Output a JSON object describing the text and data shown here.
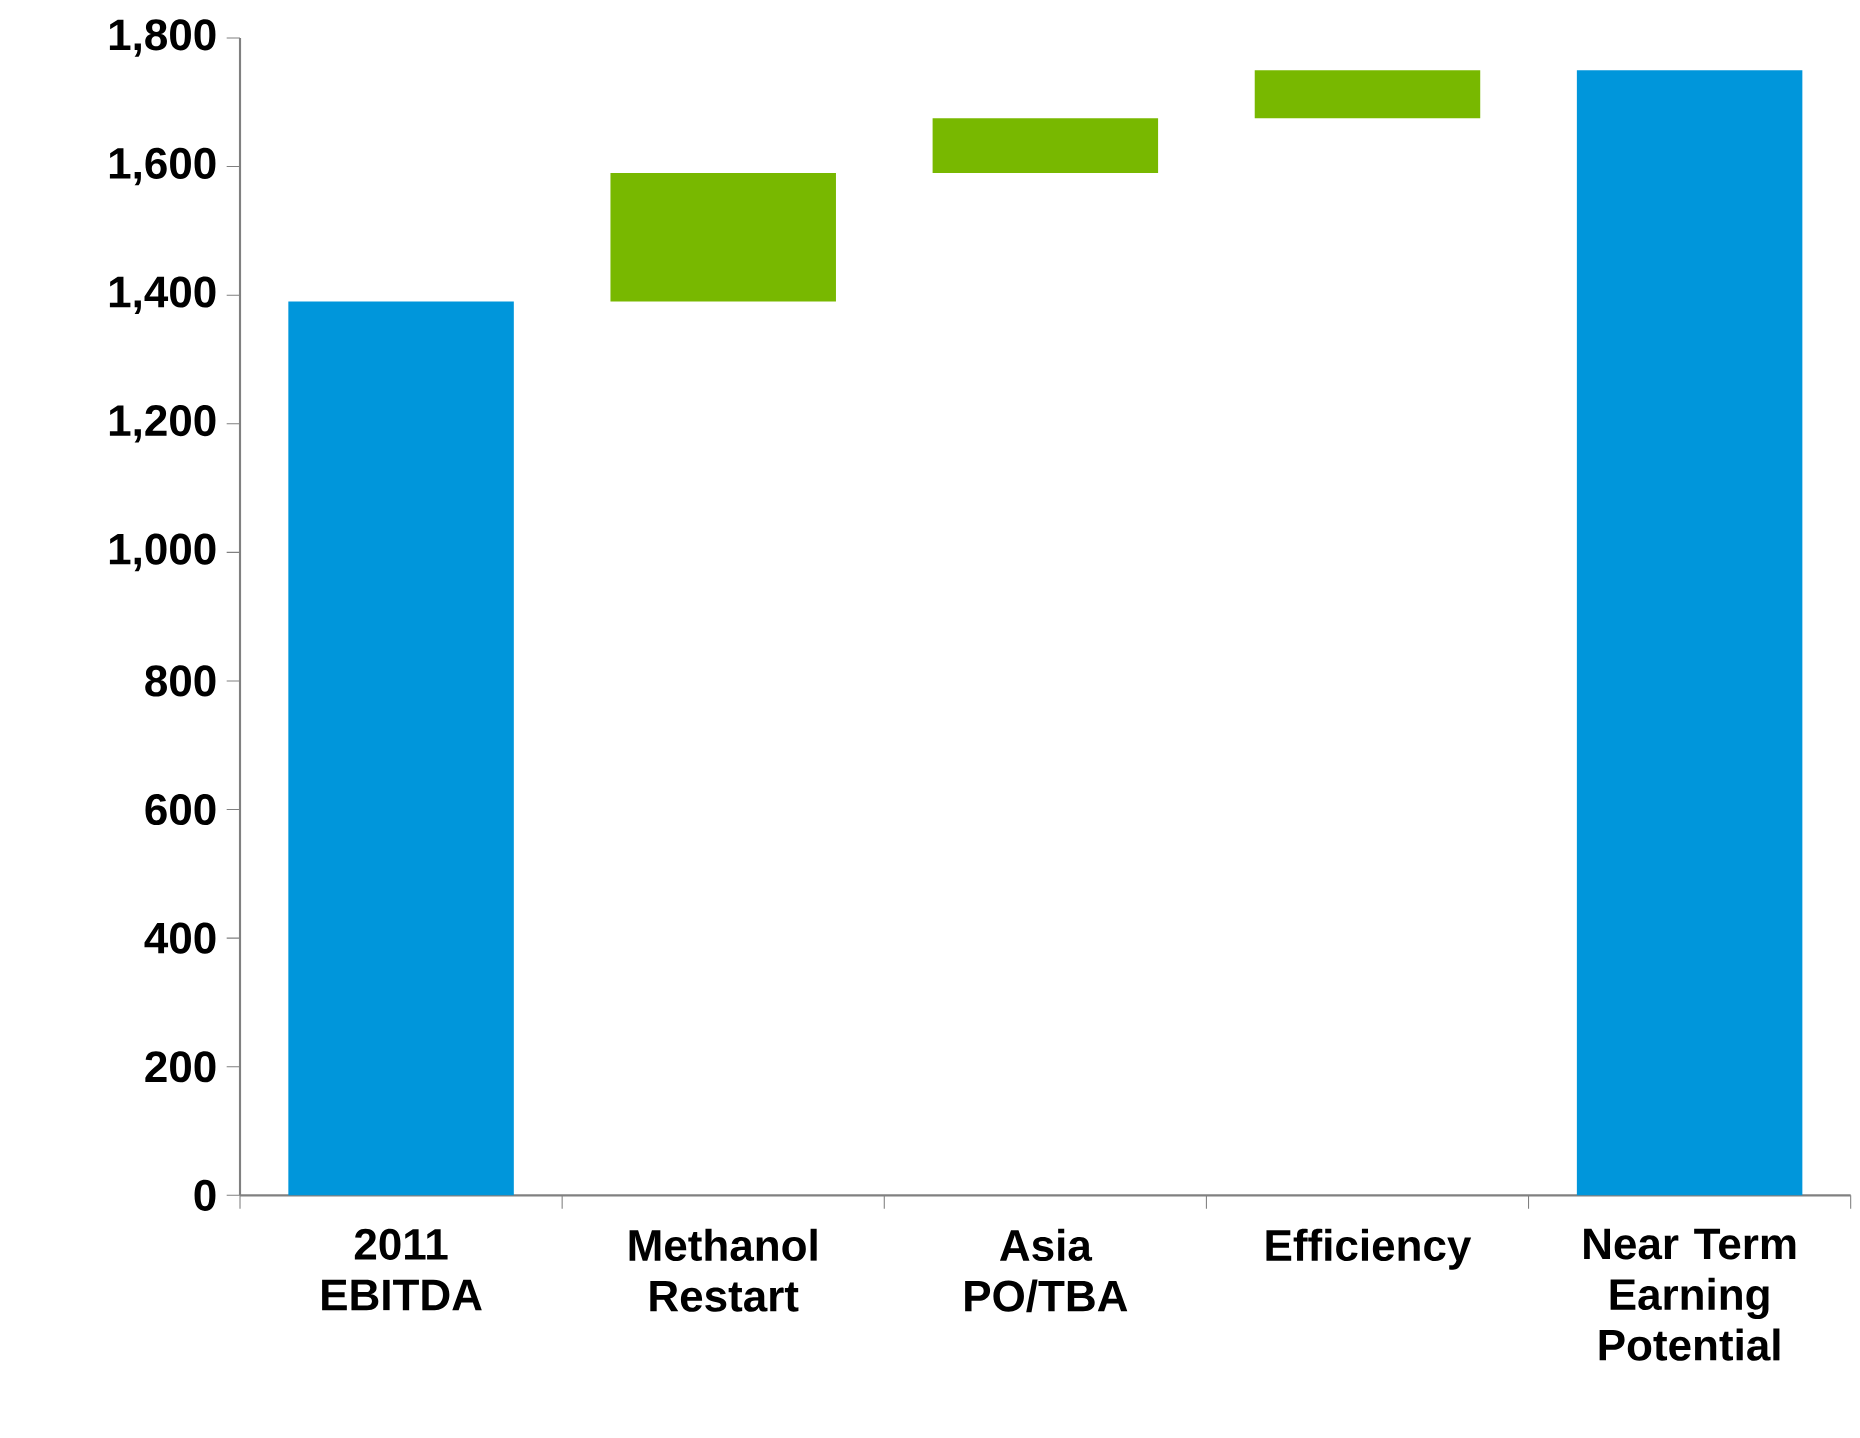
{
  "chart_data": {
    "type": "bar",
    "categories": [
      "2011 EBITDA",
      "Methanol Restart",
      "Asia PO/TBA",
      "Efficiency",
      "Near Term Earning Potential"
    ],
    "values": [
      1390,
      200,
      85,
      75,
      1750
    ],
    "base": [
      0,
      1390,
      1590,
      1675,
      0
    ],
    "colors": [
      "#0096db",
      "#78b800",
      "#78b800",
      "#78b800",
      "#0096db"
    ],
    "ylim": [
      0,
      1800
    ],
    "yticks": [
      {
        "value": 0,
        "label": "0"
      },
      {
        "value": 200,
        "label": "200"
      },
      {
        "value": 400,
        "label": "400"
      },
      {
        "value": 600,
        "label": "600"
      },
      {
        "value": 800,
        "label": "800"
      },
      {
        "value": 1000,
        "label": "1,000"
      },
      {
        "value": 1200,
        "label": "1,200"
      },
      {
        "value": 1400,
        "label": "1,400"
      },
      {
        "value": 1600,
        "label": "1,600"
      },
      {
        "value": 1800,
        "label": "1,800"
      }
    ],
    "grid": false
  }
}
